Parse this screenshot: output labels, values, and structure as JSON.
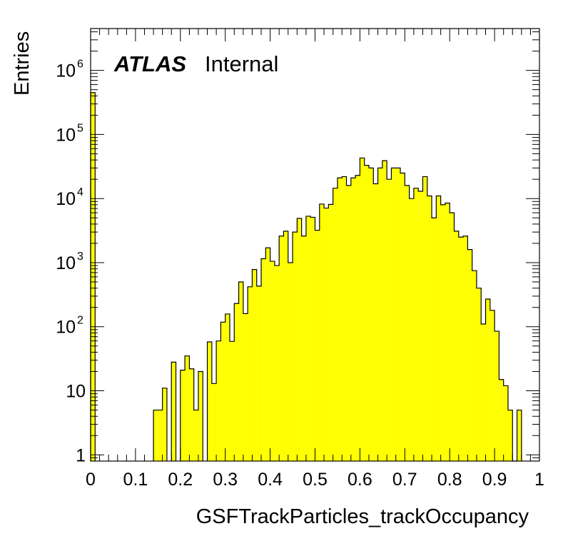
{
  "chart_data": {
    "type": "bar",
    "title": "",
    "xlabel": "GSFTrackParticles_trackOccupancy",
    "ylabel": "Entries",
    "xlim": [
      0,
      1
    ],
    "ylim": [
      0.8,
      4500000
    ],
    "log_y": true,
    "grid": false,
    "fill_color": "#ffff00",
    "line_color": "#000000",
    "bin_width": 0.01,
    "x_ticks": [
      "0",
      "0.1",
      "0.2",
      "0.3",
      "0.4",
      "0.5",
      "0.6",
      "0.7",
      "0.8",
      "0.9",
      "1"
    ],
    "x_tick_values": [
      0,
      0.1,
      0.2,
      0.3,
      0.4,
      0.5,
      0.6,
      0.7,
      0.8,
      0.9,
      1
    ],
    "y_ticks": [
      {
        "value": 1,
        "base": "1",
        "exp": ""
      },
      {
        "value": 10,
        "base": "10",
        "exp": ""
      },
      {
        "value": 100,
        "base": "10",
        "exp": "2"
      },
      {
        "value": 1000,
        "base": "10",
        "exp": "3"
      },
      {
        "value": 10000,
        "base": "10",
        "exp": "4"
      },
      {
        "value": 100000,
        "base": "10",
        "exp": "5"
      },
      {
        "value": 1000000,
        "base": "10",
        "exp": "6"
      }
    ],
    "label_atlas": "ATLAS",
    "label_status": "Internal",
    "bins": [
      {
        "x": 0.0,
        "y": 450000
      },
      {
        "x": 0.14,
        "y": 5
      },
      {
        "x": 0.15,
        "y": 5
      },
      {
        "x": 0.16,
        "y": 11
      },
      {
        "x": 0.18,
        "y": 28
      },
      {
        "x": 0.2,
        "y": 21
      },
      {
        "x": 0.21,
        "y": 35
      },
      {
        "x": 0.22,
        "y": 22
      },
      {
        "x": 0.23,
        "y": 5
      },
      {
        "x": 0.24,
        "y": 20
      },
      {
        "x": 0.26,
        "y": 58
      },
      {
        "x": 0.27,
        "y": 13
      },
      {
        "x": 0.28,
        "y": 60
      },
      {
        "x": 0.29,
        "y": 118
      },
      {
        "x": 0.3,
        "y": 158
      },
      {
        "x": 0.31,
        "y": 59
      },
      {
        "x": 0.32,
        "y": 230
      },
      {
        "x": 0.33,
        "y": 500
      },
      {
        "x": 0.34,
        "y": 160
      },
      {
        "x": 0.35,
        "y": 420
      },
      {
        "x": 0.36,
        "y": 780
      },
      {
        "x": 0.37,
        "y": 430
      },
      {
        "x": 0.38,
        "y": 1150
      },
      {
        "x": 0.39,
        "y": 1700
      },
      {
        "x": 0.4,
        "y": 1050
      },
      {
        "x": 0.41,
        "y": 900
      },
      {
        "x": 0.42,
        "y": 2600
      },
      {
        "x": 0.43,
        "y": 3100
      },
      {
        "x": 0.44,
        "y": 1000
      },
      {
        "x": 0.45,
        "y": 3000
      },
      {
        "x": 0.46,
        "y": 4900
      },
      {
        "x": 0.47,
        "y": 2600
      },
      {
        "x": 0.48,
        "y": 5300
      },
      {
        "x": 0.49,
        "y": 5100
      },
      {
        "x": 0.5,
        "y": 3200
      },
      {
        "x": 0.51,
        "y": 8200
      },
      {
        "x": 0.52,
        "y": 7100
      },
      {
        "x": 0.53,
        "y": 8100
      },
      {
        "x": 0.54,
        "y": 14500
      },
      {
        "x": 0.55,
        "y": 21000
      },
      {
        "x": 0.56,
        "y": 22000
      },
      {
        "x": 0.57,
        "y": 16000
      },
      {
        "x": 0.58,
        "y": 21000
      },
      {
        "x": 0.59,
        "y": 23000
      },
      {
        "x": 0.6,
        "y": 43000
      },
      {
        "x": 0.61,
        "y": 33000
      },
      {
        "x": 0.62,
        "y": 30000
      },
      {
        "x": 0.63,
        "y": 17000
      },
      {
        "x": 0.64,
        "y": 30000
      },
      {
        "x": 0.65,
        "y": 39000
      },
      {
        "x": 0.66,
        "y": 20000
      },
      {
        "x": 0.67,
        "y": 30000
      },
      {
        "x": 0.68,
        "y": 30000
      },
      {
        "x": 0.69,
        "y": 25000
      },
      {
        "x": 0.7,
        "y": 16000
      },
      {
        "x": 0.71,
        "y": 10000
      },
      {
        "x": 0.72,
        "y": 14500
      },
      {
        "x": 0.73,
        "y": 13000
      },
      {
        "x": 0.74,
        "y": 22000
      },
      {
        "x": 0.75,
        "y": 11000
      },
      {
        "x": 0.76,
        "y": 5000
      },
      {
        "x": 0.77,
        "y": 11000
      },
      {
        "x": 0.78,
        "y": 8000
      },
      {
        "x": 0.79,
        "y": 8500
      },
      {
        "x": 0.8,
        "y": 6000
      },
      {
        "x": 0.81,
        "y": 3100
      },
      {
        "x": 0.82,
        "y": 2500
      },
      {
        "x": 0.83,
        "y": 2600
      },
      {
        "x": 0.84,
        "y": 1600
      },
      {
        "x": 0.85,
        "y": 750
      },
      {
        "x": 0.86,
        "y": 400
      },
      {
        "x": 0.87,
        "y": 110
      },
      {
        "x": 0.88,
        "y": 270
      },
      {
        "x": 0.89,
        "y": 180
      },
      {
        "x": 0.9,
        "y": 85
      },
      {
        "x": 0.91,
        "y": 15
      },
      {
        "x": 0.92,
        "y": 12
      },
      {
        "x": 0.93,
        "y": 5
      },
      {
        "x": 0.94,
        "y": 0
      },
      {
        "x": 0.95,
        "y": 5
      }
    ]
  }
}
